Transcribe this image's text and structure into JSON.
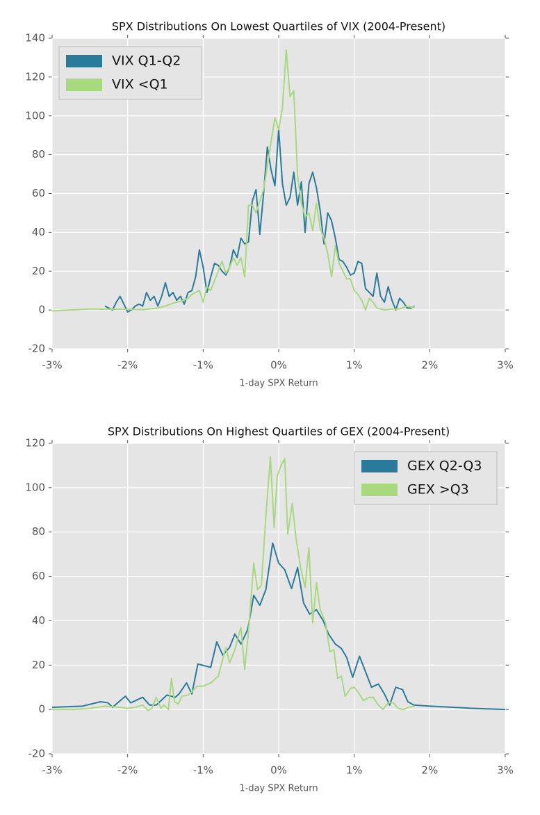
{
  "chart_data": [
    {
      "type": "line",
      "title": "SPX Distributions On Lowest Quartiles of VIX (2004-Present)",
      "xlabel": "1-day SPX Return",
      "xlim": [
        -3,
        3
      ],
      "xticks": [
        {
          "value": -3,
          "label": "-3%"
        },
        {
          "value": -2,
          "label": "-2%"
        },
        {
          "value": -1,
          "label": "-1%"
        },
        {
          "value": 0,
          "label": "0%"
        },
        {
          "value": 1,
          "label": "1%"
        },
        {
          "value": 2,
          "label": "2%"
        },
        {
          "value": 3,
          "label": "3%"
        }
      ],
      "ylim": [
        -20,
        140
      ],
      "yticks": [
        -20,
        0,
        20,
        40,
        60,
        80,
        100,
        120,
        140
      ],
      "grid": true,
      "legend": "upper left",
      "series": [
        {
          "name": "VIX Q1-Q2",
          "color": "#2a7b9b",
          "x": [
            -2.3,
            -2.25,
            -2.2,
            -2.15,
            -2.1,
            -2.05,
            -2.0,
            -1.95,
            -1.9,
            -1.85,
            -1.8,
            -1.75,
            -1.7,
            -1.65,
            -1.6,
            -1.55,
            -1.5,
            -1.45,
            -1.4,
            -1.35,
            -1.3,
            -1.25,
            -1.2,
            -1.15,
            -1.1,
            -1.05,
            -1.0,
            -0.95,
            -0.9,
            -0.85,
            -0.8,
            -0.75,
            -0.7,
            -0.65,
            -0.6,
            -0.55,
            -0.5,
            -0.45,
            -0.4,
            -0.35,
            -0.3,
            -0.25,
            -0.2,
            -0.15,
            -0.1,
            -0.05,
            0.0,
            0.05,
            0.1,
            0.15,
            0.2,
            0.25,
            0.3,
            0.35,
            0.4,
            0.45,
            0.5,
            0.55,
            0.6,
            0.65,
            0.7,
            0.75,
            0.8,
            0.85,
            0.9,
            0.95,
            1.0,
            1.05,
            1.1,
            1.15,
            1.2,
            1.25,
            1.3,
            1.35,
            1.4,
            1.45,
            1.5,
            1.55,
            1.6,
            1.65,
            1.7,
            1.75,
            1.8
          ],
          "values": [
            2,
            1,
            0,
            4,
            7,
            3,
            -1,
            0,
            2,
            3,
            2,
            9,
            5,
            7,
            2,
            7,
            14,
            7,
            9,
            5,
            7,
            3,
            9,
            10,
            17,
            31,
            22,
            9,
            17,
            24,
            23,
            20,
            18,
            22,
            31,
            27,
            37,
            34,
            35,
            56,
            62,
            39,
            60,
            84,
            72,
            64,
            93,
            65,
            54,
            58,
            71,
            54,
            66,
            40,
            65,
            71,
            63,
            51,
            34,
            50,
            46,
            37,
            26,
            25,
            22,
            18,
            19,
            25,
            24,
            11,
            9,
            7,
            19,
            7,
            4,
            12,
            5,
            0,
            6,
            4,
            1,
            1,
            2
          ]
        },
        {
          "name": "VIX <Q1",
          "color": "#a8d97f",
          "x": [
            -3.0,
            -2.5,
            -2.0,
            -1.8,
            -1.6,
            -1.5,
            -1.4,
            -1.3,
            -1.2,
            -1.15,
            -1.1,
            -1.05,
            -1.0,
            -0.95,
            -0.9,
            -0.85,
            -0.8,
            -0.75,
            -0.7,
            -0.65,
            -0.6,
            -0.55,
            -0.5,
            -0.45,
            -0.4,
            -0.35,
            -0.3,
            -0.25,
            -0.2,
            -0.15,
            -0.1,
            -0.05,
            0.0,
            0.05,
            0.1,
            0.15,
            0.2,
            0.25,
            0.3,
            0.35,
            0.4,
            0.45,
            0.5,
            0.55,
            0.6,
            0.65,
            0.7,
            0.75,
            0.8,
            0.85,
            0.9,
            0.95,
            1.0,
            1.05,
            1.1,
            1.15,
            1.2,
            1.25,
            1.3,
            1.4,
            1.5,
            1.6,
            1.7,
            1.75,
            1.8
          ],
          "values": [
            -0.5,
            0.5,
            0.3,
            0.2,
            1,
            2,
            3.5,
            4.5,
            6,
            8,
            9,
            10,
            4,
            12,
            10,
            15,
            20,
            25,
            19,
            22,
            27,
            23,
            27,
            17,
            54,
            54,
            50,
            56,
            62,
            74,
            87,
            99,
            93,
            104,
            134,
            110,
            113,
            69,
            55,
            48,
            50,
            41,
            55,
            42,
            37,
            29,
            17,
            33,
            24,
            20,
            16,
            16,
            10,
            8,
            5,
            0,
            6,
            4,
            1,
            0,
            0.5,
            0.5,
            2,
            1.5,
            1.5
          ]
        }
      ]
    },
    {
      "type": "line",
      "title": "SPX Distributions On Highest Quartiles of GEX (2004-Present)",
      "xlabel": "1-day SPX Return",
      "xlim": [
        -3,
        3
      ],
      "xticks": [
        {
          "value": -3,
          "label": "-3%"
        },
        {
          "value": -2,
          "label": "-2%"
        },
        {
          "value": -1,
          "label": "-1%"
        },
        {
          "value": 0,
          "label": "0%"
        },
        {
          "value": 1,
          "label": "1%"
        },
        {
          "value": 2,
          "label": "2%"
        },
        {
          "value": 3,
          "label": "3%"
        }
      ],
      "ylim": [
        -20,
        120
      ],
      "yticks": [
        -20,
        0,
        20,
        40,
        60,
        80,
        100,
        120
      ],
      "grid": true,
      "legend": "upper right",
      "series": [
        {
          "name": "GEX Q2-Q3",
          "color": "#2a7b9b",
          "x": [
            -3.0,
            -2.6,
            -2.36,
            -2.26,
            -2.2,
            -2.03,
            -1.96,
            -1.8,
            -1.71,
            -1.62,
            -1.48,
            -1.37,
            -1.32,
            -1.22,
            -1.15,
            -1.07,
            -0.9,
            -0.82,
            -0.74,
            -0.65,
            -0.58,
            -0.5,
            -0.41,
            -0.33,
            -0.25,
            -0.17,
            -0.08,
            0.0,
            0.08,
            0.17,
            0.25,
            0.33,
            0.41,
            0.5,
            0.59,
            0.66,
            0.75,
            0.83,
            0.9,
            0.98,
            1.07,
            1.15,
            1.23,
            1.32,
            1.4,
            1.47,
            1.55,
            1.64,
            1.71,
            1.79,
            2.01,
            2.57,
            3.0
          ],
          "values": [
            1,
            1.5,
            3.5,
            3,
            1,
            6,
            3,
            5.5,
            2,
            2,
            6.5,
            5.5,
            7,
            12,
            7,
            20.5,
            19,
            30.5,
            24.5,
            28,
            34,
            29.5,
            36,
            51.5,
            47,
            54,
            75,
            66,
            63,
            54.5,
            64,
            48,
            43,
            45,
            40,
            34,
            29.5,
            27.5,
            23.5,
            14.5,
            24,
            17,
            10,
            11.5,
            7,
            2,
            10,
            9,
            3.5,
            2,
            1.5,
            0.5,
            0
          ]
        },
        {
          "name": "GEX >Q3",
          "color": "#a8d97f",
          "x": [
            -3.0,
            -2.7,
            -2.5,
            -2.3,
            -2.1,
            -2.0,
            -1.9,
            -1.8,
            -1.73,
            -1.68,
            -1.62,
            -1.56,
            -1.52,
            -1.46,
            -1.42,
            -1.38,
            -1.33,
            -1.28,
            -1.2,
            -1.15,
            -1.08,
            -1.0,
            -0.9,
            -0.8,
            -0.7,
            -0.65,
            -0.58,
            -0.5,
            -0.45,
            -0.4,
            -0.33,
            -0.28,
            -0.23,
            -0.17,
            -0.11,
            -0.06,
            -0.02,
            0.03,
            0.08,
            0.12,
            0.18,
            0.23,
            0.29,
            0.35,
            0.4,
            0.45,
            0.5,
            0.55,
            0.62,
            0.68,
            0.73,
            0.78,
            0.83,
            0.88,
            0.95,
            1.0,
            1.05,
            1.12,
            1.2,
            1.25,
            1.32,
            1.38,
            1.45,
            1.52,
            1.58,
            1.65,
            1.72,
            1.8
          ],
          "values": [
            0,
            0,
            0.5,
            1.5,
            1,
            0.5,
            1,
            2,
            -0.5,
            0.5,
            5.5,
            0.5,
            2,
            0,
            14,
            3.5,
            2.5,
            6,
            6.5,
            8,
            10.5,
            10.5,
            12,
            15,
            28,
            21,
            27,
            37,
            18,
            35,
            66,
            54,
            56,
            87,
            114,
            82,
            105,
            110,
            113,
            79,
            93,
            77,
            64,
            55,
            73,
            39,
            57,
            45,
            39,
            26,
            27,
            14,
            15,
            6,
            9.5,
            10,
            8,
            4,
            5.5,
            5.5,
            2,
            0,
            3,
            3,
            0.5,
            0,
            1,
            1.5
          ]
        }
      ]
    }
  ]
}
